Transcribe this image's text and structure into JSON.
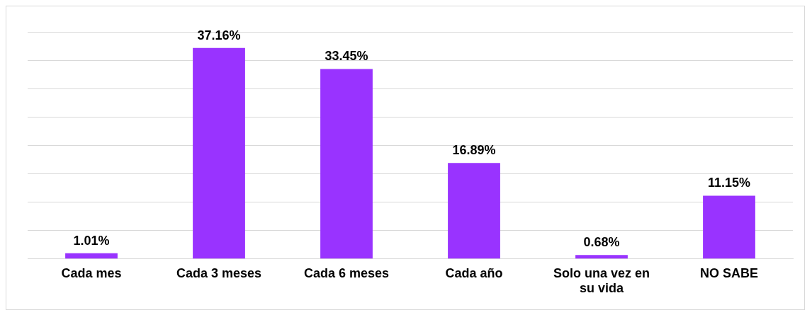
{
  "chart_data": {
    "type": "bar",
    "categories": [
      "Cada mes",
      "Cada 3 meses",
      "Cada 6 meses",
      "Cada año",
      "Solo una vez en su vida",
      "NO SABE"
    ],
    "values": [
      1.01,
      37.16,
      33.45,
      16.89,
      0.68,
      11.15
    ],
    "value_labels": [
      "1.01%",
      "37.16%",
      "33.45%",
      "16.89%",
      "0.68%",
      "11.15%"
    ],
    "color": "#9933ff",
    "ylim": [
      0,
      40
    ],
    "yticks": [
      {
        "value": 0,
        "label": null
      },
      {
        "value": 5,
        "label": null
      },
      {
        "value": 10,
        "label": null
      },
      {
        "value": 15,
        "label": null
      },
      {
        "value": 20,
        "label": null
      },
      {
        "value": 25,
        "label": null
      },
      {
        "value": 30,
        "label": null
      },
      {
        "value": 35,
        "label": null
      },
      {
        "value": 40,
        "label": null
      }
    ],
    "grid": "y",
    "tick_labels": "x",
    "legend": false
  }
}
